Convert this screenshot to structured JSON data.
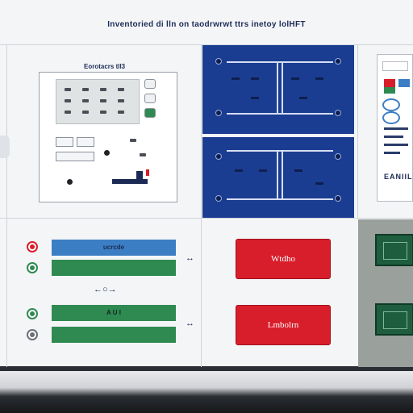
{
  "header": {
    "title": "Inventoried di lln on taodrwrwt ttrs inetoy lolHFT"
  },
  "device_panel": {
    "title": "Eorotacrs tll3"
  },
  "doc_panel": {
    "footer": "EANIIL"
  },
  "bottom_left": {
    "row1_label": "ucrcde",
    "row2_label": "A U I"
  },
  "buttons": {
    "top": "Wtdho",
    "bottom": "Lmbolrn"
  },
  "colors": {
    "blue_panel": "#1b3d91",
    "action_red": "#d81e2a",
    "status_green": "#2f8a52",
    "status_blue": "#3c7ec4"
  },
  "icons": [
    "chevron-left-icon",
    "arrow-double-icon",
    "status-dot-icon"
  ]
}
